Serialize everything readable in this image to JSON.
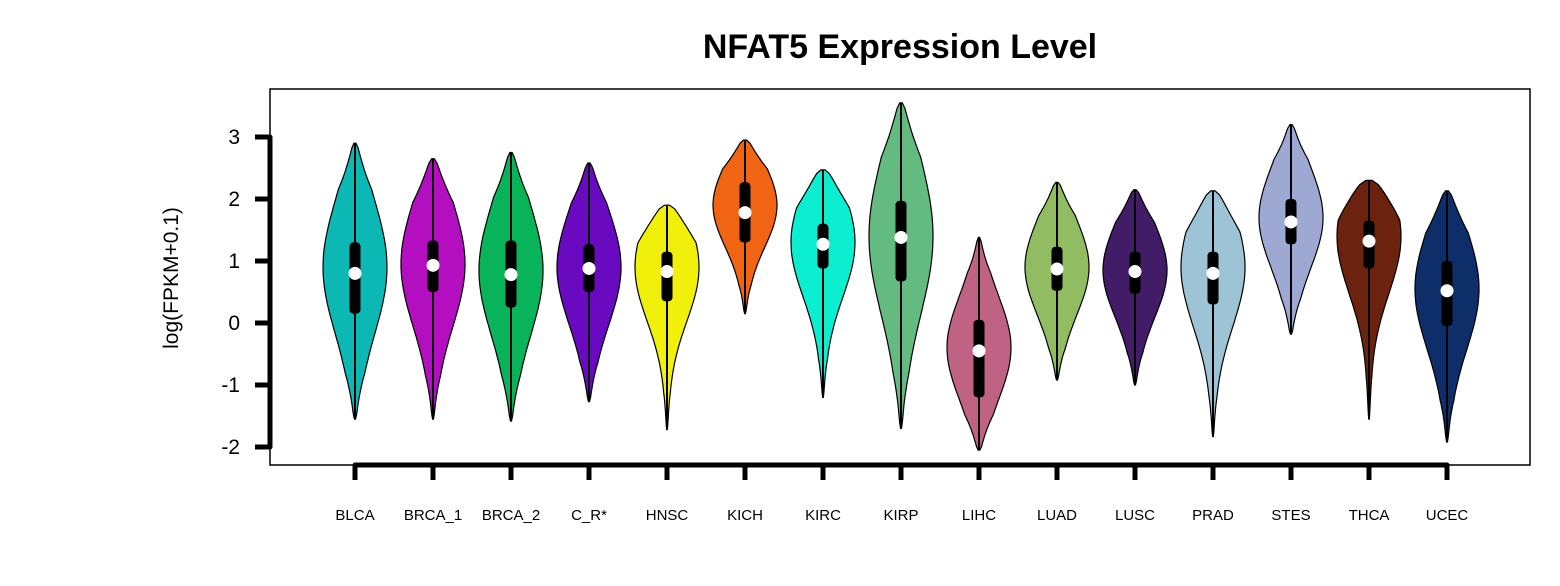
{
  "chart_data": {
    "type": "violin",
    "title": "NFAT5 Expression Level",
    "xlabel": "",
    "ylabel": "log(FPKM+0.1)",
    "ylim": [
      -2.3,
      3.8
    ],
    "yticks": [
      -2,
      -1,
      0,
      1,
      2,
      3
    ],
    "ytick_labels": [
      "-2",
      "-1",
      "0",
      "1",
      "2",
      "3"
    ],
    "grid": false,
    "legend": "none",
    "groups": [
      {
        "label": "BLCA",
        "color": "#0BB8B3",
        "min": -1.55,
        "max": 2.9,
        "q1": 0.15,
        "median": 0.8,
        "q3": 1.3,
        "wlo": -1.55,
        "whi": 2.9,
        "peak": 0.9
      },
      {
        "label": "BRCA_1",
        "color": "#B40EC1",
        "min": -1.55,
        "max": 2.65,
        "q1": 0.5,
        "median": 0.93,
        "q3": 1.33,
        "wlo": -1.55,
        "whi": 2.65,
        "peak": 0.95
      },
      {
        "label": "BRCA_2",
        "color": "#09B35A",
        "min": -1.58,
        "max": 2.75,
        "q1": 0.25,
        "median": 0.78,
        "q3": 1.33,
        "wlo": -1.58,
        "whi": 2.75,
        "peak": 0.85
      },
      {
        "label": "C_R*",
        "color": "#6A0AC0",
        "min": -1.27,
        "max": 2.58,
        "q1": 0.5,
        "median": 0.88,
        "q3": 1.27,
        "wlo": -1.27,
        "whi": 2.58,
        "peak": 0.9
      },
      {
        "label": "HNSC",
        "color": "#F0F00B",
        "min": -1.72,
        "max": 1.9,
        "q1": 0.35,
        "median": 0.83,
        "q3": 1.15,
        "wlo": -1.72,
        "whi": 1.9,
        "peak": 0.9
      },
      {
        "label": "KICH",
        "color": "#F06413",
        "min": 0.15,
        "max": 2.95,
        "q1": 1.3,
        "median": 1.78,
        "q3": 2.27,
        "wlo": 0.15,
        "whi": 2.95,
        "peak": 1.9
      },
      {
        "label": "KIRC",
        "color": "#0BEFD0",
        "min": -1.2,
        "max": 2.47,
        "q1": 0.88,
        "median": 1.27,
        "q3": 1.6,
        "wlo": -1.2,
        "whi": 2.47,
        "peak": 1.3
      },
      {
        "label": "KIRP",
        "color": "#63BB81",
        "min": -1.7,
        "max": 3.55,
        "q1": 0.67,
        "median": 1.38,
        "q3": 1.97,
        "wlo": -1.7,
        "whi": 3.55,
        "peak": 1.4
      },
      {
        "label": "LIHC",
        "color": "#BF6283",
        "min": -2.05,
        "max": 1.38,
        "q1": -1.2,
        "median": -0.45,
        "q3": 0.05,
        "wlo": -2.05,
        "whi": 1.38,
        "peak": -0.4
      },
      {
        "label": "LUAD",
        "color": "#92BC62",
        "min": -0.92,
        "max": 2.27,
        "q1": 0.52,
        "median": 0.87,
        "q3": 1.23,
        "wlo": -0.92,
        "whi": 2.27,
        "peak": 0.9
      },
      {
        "label": "LUSC",
        "color": "#421C67",
        "min": -1.0,
        "max": 2.15,
        "q1": 0.47,
        "median": 0.83,
        "q3": 1.15,
        "wlo": -1.0,
        "whi": 2.15,
        "peak": 0.85
      },
      {
        "label": "PRAD",
        "color": "#9DC4D6",
        "min": -1.83,
        "max": 2.13,
        "q1": 0.3,
        "median": 0.8,
        "q3": 1.15,
        "wlo": -1.83,
        "whi": 2.13,
        "peak": 0.9
      },
      {
        "label": "STES",
        "color": "#9DA9D3",
        "min": -0.18,
        "max": 3.2,
        "q1": 1.27,
        "median": 1.63,
        "q3": 2.0,
        "wlo": -0.18,
        "whi": 3.2,
        "peak": 1.7
      },
      {
        "label": "THCA",
        "color": "#6B220E",
        "min": -1.55,
        "max": 2.3,
        "q1": 0.88,
        "median": 1.32,
        "q3": 1.65,
        "wlo": -1.55,
        "whi": 2.3,
        "peak": 1.4
      },
      {
        "label": "UCEC",
        "color": "#0E2E6A",
        "min": -1.92,
        "max": 2.13,
        "q1": -0.05,
        "median": 0.52,
        "q3": 1.0,
        "wlo": -1.92,
        "whi": 2.13,
        "peak": 0.55
      }
    ]
  }
}
